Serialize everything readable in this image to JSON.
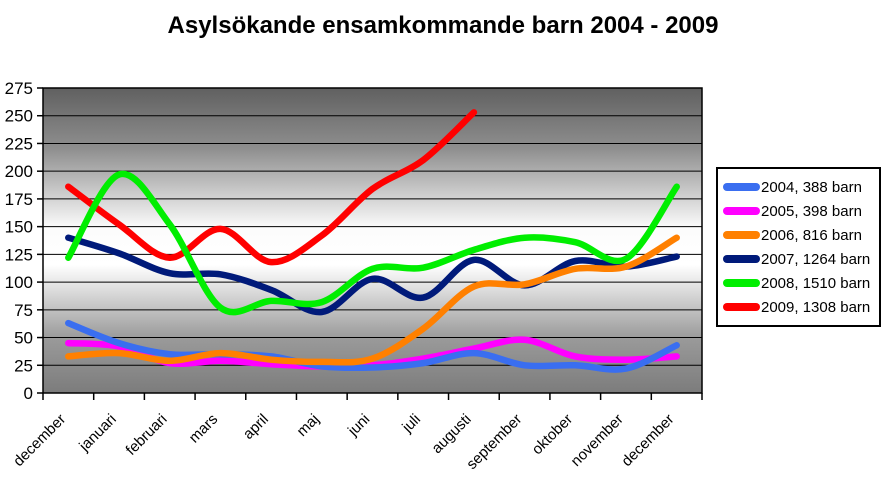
{
  "title": "Asylsökande ensamkommande barn 2004 - 2009",
  "chart_data": {
    "type": "line",
    "smooth": true,
    "title": "Asylsökande ensamkommande barn 2004 - 2009",
    "xlabel": "",
    "ylabel": "",
    "ylim": [
      0,
      275
    ],
    "yticks": [
      0,
      25,
      50,
      75,
      100,
      125,
      150,
      175,
      200,
      225,
      250,
      275
    ],
    "grid": true,
    "legend_position": "right",
    "plot_background": "vertical gray gradient (dark-white-dark)",
    "categories": [
      "december",
      "januari",
      "februari",
      "mars",
      "april",
      "maj",
      "juni",
      "juli",
      "augusti",
      "september",
      "oktober",
      "november",
      "december"
    ],
    "series": [
      {
        "name": "2004, 388 barn",
        "year": "2004",
        "total": 388,
        "color": "#3A6EF0",
        "values": [
          63,
          45,
          35,
          35,
          33,
          24,
          23,
          27,
          36,
          25,
          25,
          22,
          43
        ]
      },
      {
        "name": "2005, 398 barn",
        "year": "2005",
        "total": 398,
        "color": "#FF00FF",
        "values": [
          45,
          42,
          27,
          29,
          26,
          24,
          25,
          31,
          40,
          48,
          33,
          30,
          33
        ]
      },
      {
        "name": "2006, 816 barn",
        "year": "2006",
        "total": 816,
        "color": "#FF8000",
        "values": [
          33,
          36,
          29,
          36,
          30,
          28,
          31,
          58,
          96,
          98,
          112,
          114,
          140
        ]
      },
      {
        "name": "2007, 1264 barn",
        "year": "2007",
        "total": 1264,
        "color": "#001A7A",
        "values": [
          140,
          126,
          108,
          107,
          93,
          73,
          103,
          86,
          120,
          97,
          119,
          114,
          123
        ]
      },
      {
        "name": "2008, 1510 barn",
        "year": "2008",
        "total": 1510,
        "color": "#00EE00",
        "values": [
          122,
          197,
          152,
          77,
          83,
          82,
          112,
          113,
          129,
          140,
          136,
          121,
          186
        ]
      },
      {
        "name": "2009, 1308 barn",
        "year": "2009",
        "total": 1308,
        "color": "#FF0000",
        "values": [
          186,
          152,
          122,
          148,
          118,
          142,
          184,
          210,
          253,
          null,
          null,
          null,
          null
        ]
      }
    ],
    "draw_order": [
      1,
      0,
      3,
      2,
      5,
      4
    ],
    "axis_color": "#000000",
    "gridline_color": "#000000"
  }
}
